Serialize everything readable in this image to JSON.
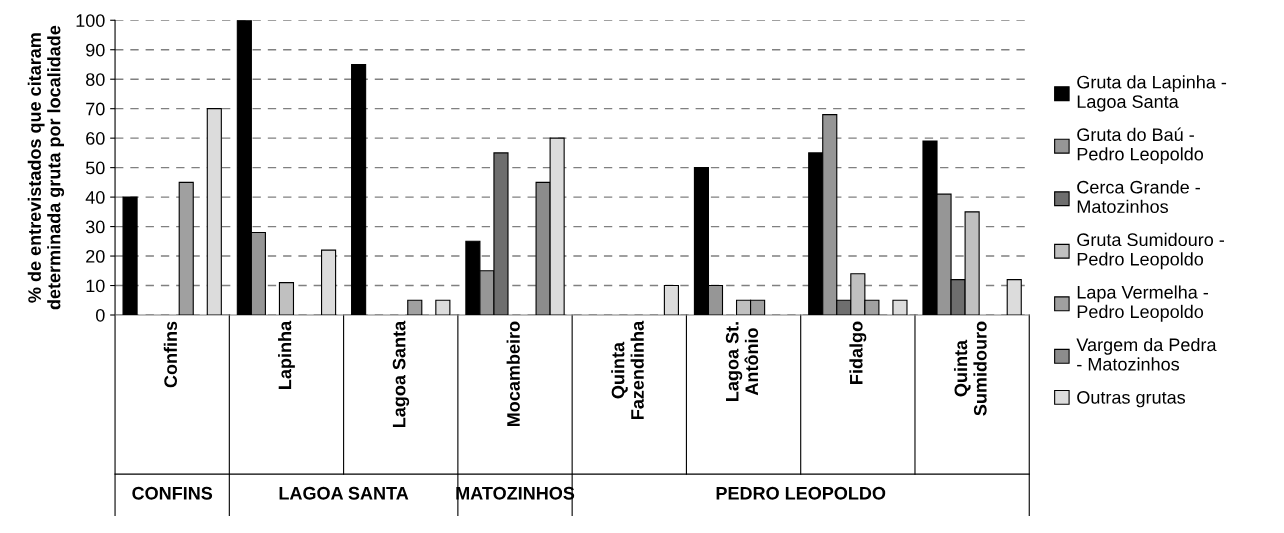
{
  "chart_data": {
    "type": "bar",
    "ylabel": "% de entrevistados que citaram\ndeterminada gruta por localidade",
    "categories": [
      "Confins",
      "Lapinha",
      "Lagoa Santa",
      "Mocambeiro",
      "Quinta\nFazendinha",
      "Lagoa St.\nAntônio",
      "Fidalgo",
      "Quinta\nSumidouro"
    ],
    "series": [
      {
        "name": "Gruta da Lapinha -\nLagoa Santa",
        "color": "#000000",
        "values": [
          40,
          100,
          85,
          25,
          null,
          50,
          55,
          59
        ]
      },
      {
        "name": "Gruta do Baú -\nPedro Leopoldo",
        "color": "#969696",
        "values": [
          null,
          28,
          null,
          15,
          null,
          10,
          68,
          41
        ]
      },
      {
        "name": "Cerca Grande -\nMatozinhos",
        "color": "#6e6e6e",
        "values": [
          null,
          null,
          null,
          55,
          null,
          null,
          5,
          12
        ]
      },
      {
        "name": "Gruta Sumidouro -\nPedro Leopoldo",
        "color": "#c0c0c0",
        "values": [
          null,
          11,
          null,
          null,
          null,
          5,
          14,
          35
        ]
      },
      {
        "name": "Lapa Vermelha -\nPedro Leopoldo",
        "color": "#a0a0a0",
        "values": [
          45,
          null,
          5,
          null,
          null,
          5,
          5,
          null
        ]
      },
      {
        "name": "Vargem da Pedra\n- Matozinhos",
        "color": "#8c8c8c",
        "values": [
          null,
          null,
          null,
          45,
          null,
          null,
          null,
          null
        ]
      },
      {
        "name": "Outras grutas",
        "color": "#dcdcdc",
        "values": [
          70,
          22,
          5,
          60,
          10,
          null,
          5,
          12
        ]
      }
    ],
    "ylim": [
      0,
      100
    ],
    "yticks": [
      0,
      10,
      20,
      30,
      40,
      50,
      60,
      70,
      80,
      90,
      100
    ],
    "grid": "y",
    "legend": "right",
    "annotations": [
      "CONFINS",
      "LAGOA SANTA",
      "MATOZINHOS",
      "PEDRO LEOPOLDO"
    ]
  }
}
